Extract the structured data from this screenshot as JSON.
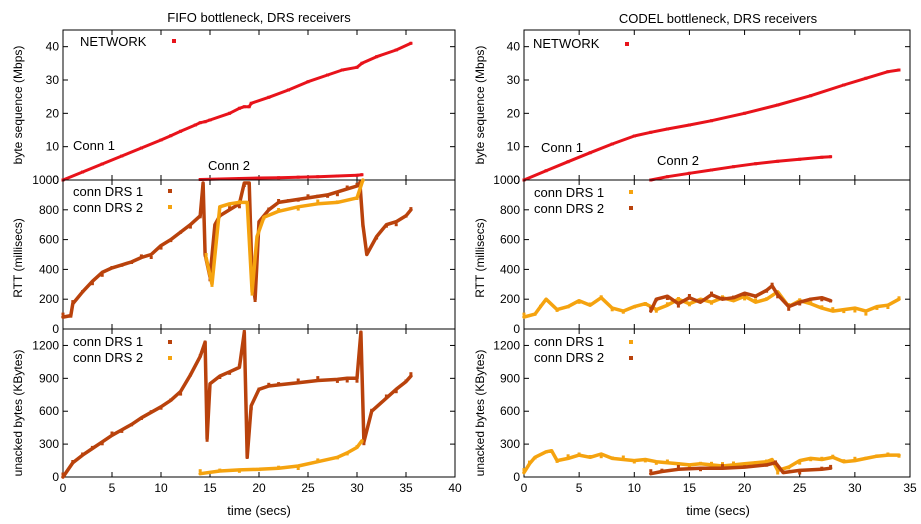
{
  "colors": {
    "network": "#e8131b",
    "drs_a": "#b9420c",
    "drs_b": "#f5a30f",
    "axis": "#000000"
  },
  "common": {
    "xlabel": "time (secs)"
  },
  "panels": {
    "fifo": {
      "title": "FIFO bottleneck, DRS receivers",
      "seq_legend": "NETWORK",
      "conn1_label": "Conn 1",
      "conn2_label": "Conn 2",
      "rtt_legend": [
        "conn DRS 1",
        "conn DRS 2"
      ],
      "unacked_legend": [
        "conn DRS 1",
        "conn DRS 2"
      ]
    },
    "codel": {
      "title": "CODEL bottleneck, DRS receivers",
      "seq_legend": "NETWORK",
      "conn1_label": "Conn 1",
      "conn2_label": "Conn 2",
      "rtt_legend": [
        "conn DRS 1",
        "conn DRS 2"
      ],
      "unacked_legend": [
        "conn DRS 1",
        "conn DRS 2"
      ]
    }
  },
  "chart_data": [
    {
      "id": "fifo-seq",
      "type": "scatter",
      "title": "FIFO bottleneck, DRS receivers",
      "xlabel": "",
      "ylabel": "byte sequence (Mbps)",
      "xlim": [
        0,
        40
      ],
      "ylim": [
        0,
        45
      ],
      "xticks": [
        0,
        5,
        10,
        15,
        20,
        25,
        30,
        35,
        40
      ],
      "yticks": [
        0,
        10,
        20,
        30,
        40
      ],
      "legend": "NETWORK",
      "series": [
        {
          "color_key": "network",
          "x": [
            0,
            2,
            4,
            6,
            8,
            10,
            11,
            12,
            13.5,
            14,
            14.5,
            15,
            17,
            18,
            18.5,
            19,
            19.2,
            21,
            23,
            25,
            27,
            28.5,
            30,
            30.5,
            32,
            34,
            35.5
          ],
          "y": [
            0,
            2.4,
            4.8,
            7.2,
            9.6,
            12,
            13.3,
            14.6,
            16.5,
            17.2,
            17.5,
            18,
            20,
            21.5,
            22,
            22,
            23,
            24.8,
            27,
            29.5,
            31.5,
            33,
            33.8,
            35,
            37,
            39,
            41
          ]
        },
        {
          "color_key": "network",
          "x": [
            14,
            16,
            18,
            20,
            22,
            24,
            26,
            28,
            30,
            30.5
          ],
          "y": [
            0.15,
            0.3,
            0.45,
            0.6,
            0.7,
            0.85,
            1.0,
            1.2,
            1.4,
            1.6
          ]
        }
      ]
    },
    {
      "id": "fifo-rtt",
      "type": "scatter",
      "xlabel": "",
      "ylabel": "RTT (millisecs)",
      "xlim": [
        0,
        40
      ],
      "ylim": [
        0,
        1000
      ],
      "xticks": [
        0,
        5,
        10,
        15,
        20,
        25,
        30,
        35,
        40
      ],
      "yticks": [
        0,
        200,
        400,
        600,
        800,
        1000
      ],
      "legend": [
        "conn DRS 1",
        "conn DRS 2"
      ],
      "series": [
        {
          "color_key": "drs_a",
          "x": [
            0,
            0.8,
            1,
            2,
            3,
            4,
            5,
            6,
            7,
            8,
            9,
            10,
            11,
            12,
            13,
            14,
            14.3,
            14.5,
            15,
            15.5,
            16,
            17,
            18,
            18.5,
            19,
            19.3,
            19.6,
            20,
            21,
            22,
            23,
            24,
            25,
            26,
            27,
            28,
            29,
            30,
            30.3,
            30.6,
            31,
            32,
            33,
            34,
            35,
            35.5
          ],
          "y": [
            80,
            90,
            170,
            250,
            320,
            380,
            410,
            430,
            450,
            480,
            500,
            560,
            600,
            650,
            700,
            760,
            980,
            500,
            350,
            700,
            760,
            800,
            840,
            980,
            980,
            350,
            200,
            720,
            800,
            850,
            860,
            870,
            880,
            890,
            900,
            920,
            940,
            960,
            980,
            700,
            500,
            620,
            700,
            720,
            760,
            800
          ]
        },
        {
          "color_key": "drs_b",
          "x": [
            14.6,
            15.2,
            16,
            17,
            18,
            18.8,
            19.3,
            19.8,
            20.5,
            22,
            24,
            26,
            28,
            30,
            30.6
          ],
          "y": [
            480,
            300,
            820,
            840,
            850,
            850,
            250,
            620,
            750,
            790,
            820,
            840,
            850,
            880,
            1000
          ]
        }
      ]
    },
    {
      "id": "fifo-unacked",
      "type": "scatter",
      "xlabel": "time (secs)",
      "ylabel": "unacked bytes (KBytes)",
      "xlim": [
        0,
        40
      ],
      "ylim": [
        0,
        1350
      ],
      "xticks": [
        0,
        5,
        10,
        15,
        20,
        25,
        30,
        35,
        40
      ],
      "yticks": [
        0,
        300,
        600,
        900,
        1200
      ],
      "legend": [
        "conn DRS 1",
        "conn DRS 2"
      ],
      "series": [
        {
          "color_key": "drs_a",
          "x": [
            0,
            1,
            2,
            3,
            4,
            5,
            6,
            7,
            8,
            9,
            10,
            11,
            12,
            13,
            14,
            14.5,
            14.7,
            15,
            16,
            17,
            18,
            18.5,
            18.8,
            19.2,
            20,
            21,
            22,
            24,
            26,
            28,
            29,
            30,
            30.4,
            30.7,
            31.5,
            33,
            34,
            35,
            35.5
          ],
          "y": [
            0,
            130,
            200,
            260,
            320,
            380,
            430,
            480,
            540,
            590,
            640,
            700,
            780,
            930,
            1100,
            1230,
            350,
            850,
            920,
            960,
            1000,
            1320,
            180,
            650,
            800,
            830,
            840,
            860,
            880,
            890,
            900,
            900,
            1320,
            320,
            600,
            720,
            800,
            870,
            920
          ]
        },
        {
          "color_key": "drs_b",
          "x": [
            14,
            16,
            18,
            20,
            22,
            24,
            26,
            28,
            29,
            30,
            30.5
          ],
          "y": [
            30,
            55,
            65,
            70,
            80,
            100,
            140,
            180,
            220,
            270,
            330
          ]
        }
      ]
    },
    {
      "id": "codel-seq",
      "type": "scatter",
      "title": "CODEL bottleneck, DRS receivers",
      "xlabel": "",
      "ylabel": "byte sequence (Mbps)",
      "xlim": [
        0,
        35
      ],
      "ylim": [
        0,
        45
      ],
      "xticks": [
        0,
        5,
        10,
        15,
        20,
        25,
        30,
        35
      ],
      "yticks": [
        0,
        10,
        20,
        30,
        40
      ],
      "legend": "NETWORK",
      "series": [
        {
          "color_key": "network",
          "x": [
            0,
            2,
            4,
            6,
            8,
            10,
            11.5,
            13,
            15,
            17,
            20,
            23,
            26,
            29,
            31,
            33,
            34
          ],
          "y": [
            0,
            2.8,
            5.5,
            8.2,
            10.8,
            13.2,
            14.3,
            15.3,
            16.5,
            17.8,
            20,
            22.5,
            25.3,
            28.5,
            30.5,
            32.5,
            33
          ]
        },
        {
          "color_key": "network",
          "x": [
            11.5,
            13,
            15,
            17,
            19,
            21,
            23,
            25,
            27,
            27.8
          ],
          "y": [
            0,
            1,
            2,
            3,
            4,
            4.9,
            5.6,
            6.2,
            6.8,
            7
          ]
        }
      ]
    },
    {
      "id": "codel-rtt",
      "type": "scatter",
      "xlabel": "",
      "ylabel": "RTT (millisecs)",
      "xlim": [
        0,
        35
      ],
      "ylim": [
        0,
        1000
      ],
      "xticks": [
        0,
        5,
        10,
        15,
        20,
        25,
        30,
        35
      ],
      "yticks": [
        0,
        200,
        400,
        600,
        800,
        1000
      ],
      "legend": [
        "conn DRS 1",
        "conn DRS 2"
      ],
      "series": [
        {
          "color_key": "drs_b",
          "x": [
            0,
            1,
            1.5,
            2,
            3,
            4,
            5,
            6,
            7,
            8,
            9,
            10,
            11,
            12,
            13,
            14,
            15,
            16,
            17,
            18,
            19,
            20,
            21,
            22,
            23,
            24,
            25,
            26,
            27,
            28,
            29,
            30,
            31,
            32,
            33,
            34
          ],
          "y": [
            80,
            100,
            150,
            200,
            130,
            150,
            190,
            160,
            210,
            140,
            120,
            150,
            170,
            130,
            160,
            200,
            170,
            200,
            180,
            210,
            190,
            220,
            180,
            200,
            250,
            150,
            190,
            170,
            140,
            120,
            130,
            140,
            120,
            150,
            160,
            200
          ]
        },
        {
          "color_key": "drs_a",
          "x": [
            11.5,
            12,
            13,
            14,
            15,
            16,
            17,
            18,
            19,
            20,
            21,
            22,
            22.5,
            23,
            24,
            25,
            26,
            27,
            27.8
          ],
          "y": [
            120,
            200,
            220,
            170,
            210,
            180,
            230,
            200,
            210,
            240,
            220,
            260,
            290,
            230,
            150,
            180,
            200,
            210,
            190
          ]
        }
      ]
    },
    {
      "id": "codel-unacked",
      "type": "scatter",
      "xlabel": "time (secs)",
      "ylabel": "unacked bytes (KBytes)",
      "xlim": [
        0,
        35
      ],
      "ylim": [
        0,
        1350
      ],
      "xticks": [
        0,
        5,
        10,
        15,
        20,
        25,
        30,
        35
      ],
      "yticks": [
        0,
        300,
        600,
        900,
        1200
      ],
      "legend": [
        "conn DRS 1",
        "conn DRS 2"
      ],
      "series": [
        {
          "color_key": "drs_b",
          "x": [
            0,
            0.5,
            1,
            2,
            2.5,
            3,
            4,
            5,
            6,
            7,
            8,
            9,
            10,
            11,
            12,
            13,
            14,
            15,
            16,
            17,
            18,
            19,
            20,
            21,
            22,
            22.5,
            23,
            24,
            25,
            26,
            27,
            28,
            29,
            30,
            31,
            32,
            33,
            34
          ],
          "y": [
            40,
            120,
            180,
            230,
            240,
            150,
            170,
            200,
            180,
            210,
            170,
            160,
            150,
            160,
            140,
            130,
            120,
            110,
            120,
            110,
            100,
            110,
            120,
            130,
            140,
            160,
            60,
            90,
            150,
            170,
            160,
            180,
            140,
            150,
            170,
            190,
            200,
            200
          ]
        },
        {
          "color_key": "drs_a",
          "x": [
            11.5,
            12.5,
            14,
            16,
            18,
            20,
            22,
            22.8,
            23.5,
            25,
            27,
            27.8
          ],
          "y": [
            30,
            50,
            70,
            80,
            80,
            90,
            110,
            130,
            40,
            60,
            70,
            80
          ]
        }
      ]
    }
  ]
}
